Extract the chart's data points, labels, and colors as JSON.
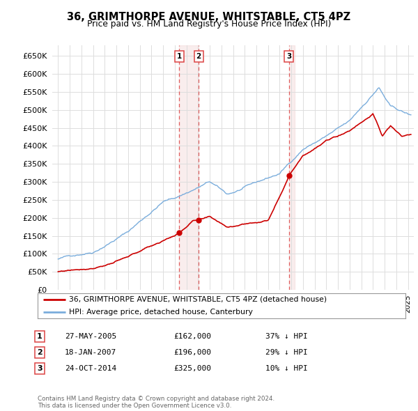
{
  "title": "36, GRIMTHORPE AVENUE, WHITSTABLE, CT5 4PZ",
  "subtitle": "Price paid vs. HM Land Registry's House Price Index (HPI)",
  "ylim": [
    0,
    680000
  ],
  "yticks": [
    0,
    50000,
    100000,
    150000,
    200000,
    250000,
    300000,
    350000,
    400000,
    450000,
    500000,
    550000,
    600000,
    650000
  ],
  "xlim_start": 1994.5,
  "xlim_end": 2025.5,
  "red_line_color": "#cc0000",
  "blue_line_color": "#7aaddc",
  "grid_color": "#dddddd",
  "vline_color": "#dd4444",
  "shade_color": "#eecccc",
  "legend_red_label": "36, GRIMTHORPE AVENUE, WHITSTABLE, CT5 4PZ (detached house)",
  "legend_blue_label": "HPI: Average price, detached house, Canterbury",
  "transactions": [
    {
      "num": 1,
      "date": "27-MAY-2005",
      "price": 162000,
      "pct": "37%",
      "x": 2005.4
    },
    {
      "num": 2,
      "date": "18-JAN-2007",
      "price": 196000,
      "pct": "29%",
      "x": 2007.05
    },
    {
      "num": 3,
      "date": "24-OCT-2014",
      "price": 325000,
      "pct": "10%",
      "x": 2014.8
    }
  ],
  "footer": "Contains HM Land Registry data © Crown copyright and database right 2024.\nThis data is licensed under the Open Government Licence v3.0.",
  "background_color": "#ffffff"
}
